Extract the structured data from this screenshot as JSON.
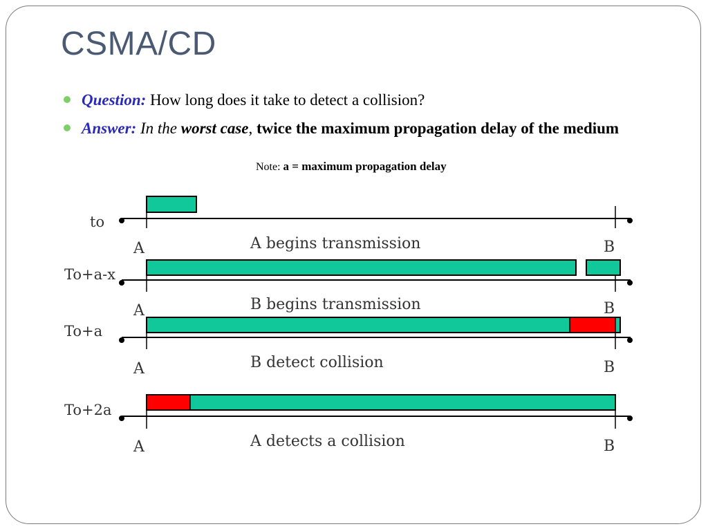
{
  "title": "CSMA/CD",
  "bullets": {
    "question_label": "Question:",
    "question_text": " How long does it take to detect a collision?",
    "answer_label": "Answer:",
    "answer_in_the": " In the ",
    "answer_worst_case": "worst case",
    "answer_comma": ", ",
    "answer_rest": "twice the maximum propagation delay of the medium"
  },
  "note": {
    "prefix": "Note: ",
    "text": "a = maximum propagation delay"
  },
  "diagram": {
    "colors": {
      "signal": "#10c89a",
      "collision": "#ff0000",
      "line": "#000000"
    },
    "rows": [
      {
        "time_label": "to",
        "caption": "A begins transmission",
        "left_label": "A",
        "right_label": "B"
      },
      {
        "time_label": "To+a-x",
        "caption": "B begins transmission",
        "left_label": "A",
        "right_label": "B"
      },
      {
        "time_label": "To+a",
        "caption": "B detect collision",
        "left_label": "A",
        "right_label": "B"
      },
      {
        "time_label": "To+2a",
        "caption": "A detects a collision",
        "left_label": "A",
        "right_label": "B"
      }
    ]
  }
}
